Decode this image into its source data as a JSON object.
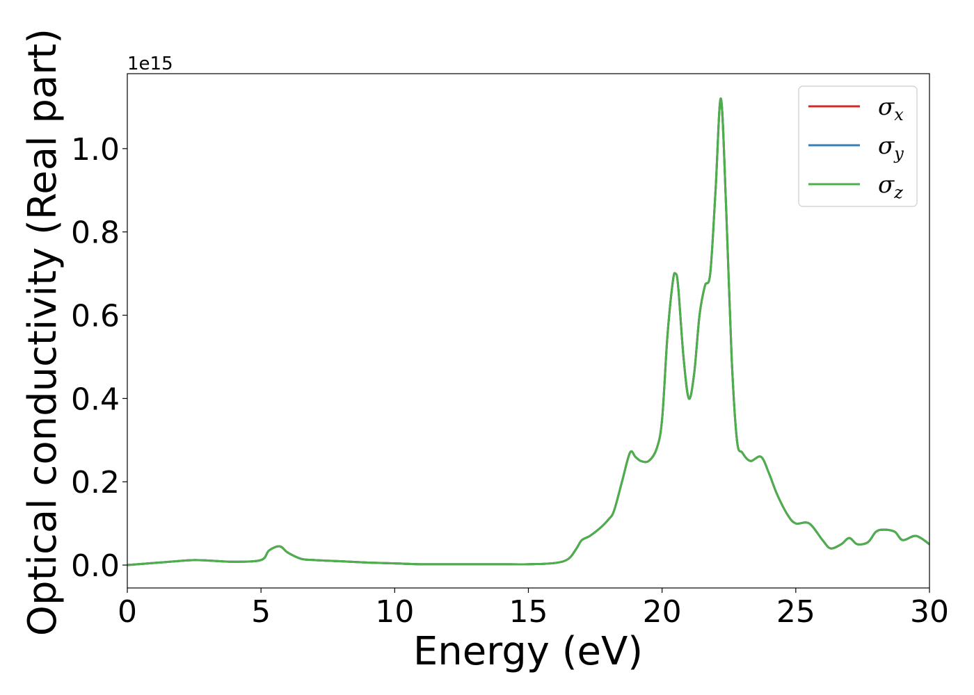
{
  "chart_data": {
    "type": "line",
    "title": "",
    "xlabel": "Energy (eV)",
    "ylabel": "Optical conductivity (Real part)",
    "y_offset_text": "1e15",
    "xlim": [
      0,
      30
    ],
    "ylim": [
      -0.055,
      1.18
    ],
    "xticks": [
      0,
      5,
      10,
      15,
      20,
      25,
      30
    ],
    "xtick_labels": [
      "0",
      "5",
      "10",
      "15",
      "20",
      "25",
      "30"
    ],
    "yticks": [
      0.0,
      0.2,
      0.4,
      0.6,
      0.8,
      1.0
    ],
    "ytick_labels": [
      "0.0",
      "0.2",
      "0.4",
      "0.6",
      "0.8",
      "1.0"
    ],
    "grid": false,
    "legend": {
      "position": "top-right",
      "entries": [
        {
          "symbol": "σ",
          "subscript": "x",
          "color": "#d62728"
        },
        {
          "symbol": "σ",
          "subscript": "y",
          "color": "#377eb8"
        },
        {
          "symbol": "σ",
          "subscript": "z",
          "color": "#4daf4a"
        }
      ]
    },
    "x": [
      0,
      1,
      2,
      2.5,
      3,
      4,
      5,
      5.3,
      5.7,
      6,
      6.5,
      7,
      8,
      9,
      10,
      11,
      12,
      13,
      14,
      15,
      16,
      16.5,
      16.8,
      17,
      17.3,
      17.7,
      18,
      18.2,
      18.5,
      18.8,
      19,
      19.2,
      19.5,
      19.8,
      20,
      20.2,
      20.4,
      20.5,
      20.6,
      20.8,
      21,
      21.2,
      21.4,
      21.6,
      21.8,
      22,
      22.2,
      22.4,
      22.6,
      22.8,
      23,
      23.3,
      23.7,
      24,
      24.3,
      24.7,
      25,
      25.5,
      26,
      26.3,
      26.7,
      27,
      27.3,
      27.7,
      28,
      28.3,
      28.7,
      29,
      29.5,
      30
    ],
    "series": [
      {
        "name": "σx",
        "color": "#d62728",
        "values": [
          0,
          0.005,
          0.01,
          0.012,
          0.011,
          0.008,
          0.012,
          0.035,
          0.045,
          0.03,
          0.015,
          0.012,
          0.009,
          0.006,
          0.004,
          0.002,
          0.002,
          0.002,
          0.002,
          0.002,
          0.005,
          0.015,
          0.04,
          0.06,
          0.07,
          0.09,
          0.11,
          0.13,
          0.2,
          0.27,
          0.26,
          0.25,
          0.25,
          0.28,
          0.35,
          0.55,
          0.68,
          0.7,
          0.67,
          0.5,
          0.4,
          0.46,
          0.6,
          0.67,
          0.7,
          0.9,
          1.12,
          0.85,
          0.5,
          0.3,
          0.27,
          0.25,
          0.26,
          0.22,
          0.17,
          0.12,
          0.1,
          0.1,
          0.06,
          0.04,
          0.05,
          0.065,
          0.05,
          0.055,
          0.08,
          0.085,
          0.08,
          0.06,
          0.07,
          0.05
        ]
      },
      {
        "name": "σy",
        "color": "#377eb8",
        "values": [
          0,
          0.005,
          0.01,
          0.012,
          0.011,
          0.008,
          0.012,
          0.035,
          0.045,
          0.03,
          0.015,
          0.012,
          0.009,
          0.006,
          0.004,
          0.002,
          0.002,
          0.002,
          0.002,
          0.002,
          0.005,
          0.015,
          0.04,
          0.06,
          0.07,
          0.09,
          0.11,
          0.13,
          0.2,
          0.27,
          0.26,
          0.25,
          0.25,
          0.28,
          0.35,
          0.55,
          0.68,
          0.7,
          0.67,
          0.5,
          0.4,
          0.46,
          0.6,
          0.67,
          0.7,
          0.9,
          1.12,
          0.85,
          0.5,
          0.3,
          0.27,
          0.25,
          0.26,
          0.22,
          0.17,
          0.12,
          0.1,
          0.1,
          0.06,
          0.04,
          0.05,
          0.065,
          0.05,
          0.055,
          0.08,
          0.085,
          0.08,
          0.06,
          0.07,
          0.05
        ]
      },
      {
        "name": "σz",
        "color": "#4daf4a",
        "values": [
          0,
          0.005,
          0.01,
          0.012,
          0.011,
          0.008,
          0.012,
          0.035,
          0.045,
          0.03,
          0.015,
          0.012,
          0.009,
          0.006,
          0.004,
          0.002,
          0.002,
          0.002,
          0.002,
          0.002,
          0.005,
          0.015,
          0.04,
          0.06,
          0.07,
          0.09,
          0.11,
          0.13,
          0.2,
          0.27,
          0.26,
          0.25,
          0.25,
          0.28,
          0.35,
          0.55,
          0.68,
          0.7,
          0.67,
          0.5,
          0.4,
          0.46,
          0.6,
          0.67,
          0.7,
          0.9,
          1.12,
          0.85,
          0.5,
          0.3,
          0.27,
          0.25,
          0.26,
          0.22,
          0.17,
          0.12,
          0.1,
          0.1,
          0.06,
          0.04,
          0.05,
          0.065,
          0.05,
          0.055,
          0.08,
          0.085,
          0.08,
          0.06,
          0.07,
          0.05
        ]
      }
    ]
  }
}
